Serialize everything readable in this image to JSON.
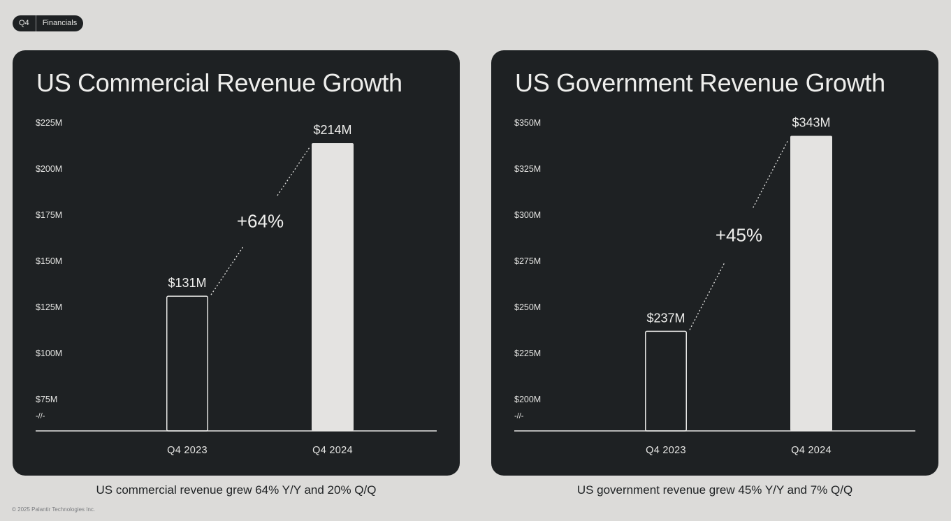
{
  "header": {
    "quarter": "Q4",
    "section": "Financials"
  },
  "footer": {
    "copyright": "© 2025 Palantir Technologies Inc."
  },
  "axis_break_label": "-//-",
  "colors": {
    "background": "#dcdbd9",
    "card": "#1e2123",
    "text_light": "#eeeeec",
    "bar_fill": "#e4e3e1"
  },
  "chart_data": [
    {
      "type": "bar",
      "title": "US Commercial Revenue Growth",
      "caption": "US commercial revenue grew 64% Y/Y and 20% Q/Q",
      "categories": [
        "Q4 2023",
        "Q4 2024"
      ],
      "values": [
        131,
        214
      ],
      "value_labels": [
        "$131M",
        "$214M"
      ],
      "bar_styles": [
        "outline",
        "filled"
      ],
      "growth_label": "+64%",
      "ylim": [
        75,
        225
      ],
      "yticks": [
        75,
        100,
        125,
        150,
        175,
        200,
        225
      ],
      "ytick_labels": [
        "$75M",
        "$100M",
        "$125M",
        "$150M",
        "$175M",
        "$200M",
        "$225M"
      ],
      "axis_break": true,
      "grid": false,
      "xlabel": "",
      "ylabel": ""
    },
    {
      "type": "bar",
      "title": "US Government Revenue Growth",
      "caption": "US government revenue grew 45% Y/Y and 7% Q/Q",
      "categories": [
        "Q4 2023",
        "Q4 2024"
      ],
      "values": [
        237,
        343
      ],
      "value_labels": [
        "$237M",
        "$343M"
      ],
      "bar_styles": [
        "outline",
        "filled"
      ],
      "growth_label": "+45%",
      "ylim": [
        200,
        350
      ],
      "yticks": [
        200,
        225,
        250,
        275,
        300,
        325,
        350
      ],
      "ytick_labels": [
        "$200M",
        "$225M",
        "$250M",
        "$275M",
        "$300M",
        "$325M",
        "$350M"
      ],
      "axis_break": true,
      "grid": false,
      "xlabel": "",
      "ylabel": ""
    }
  ]
}
